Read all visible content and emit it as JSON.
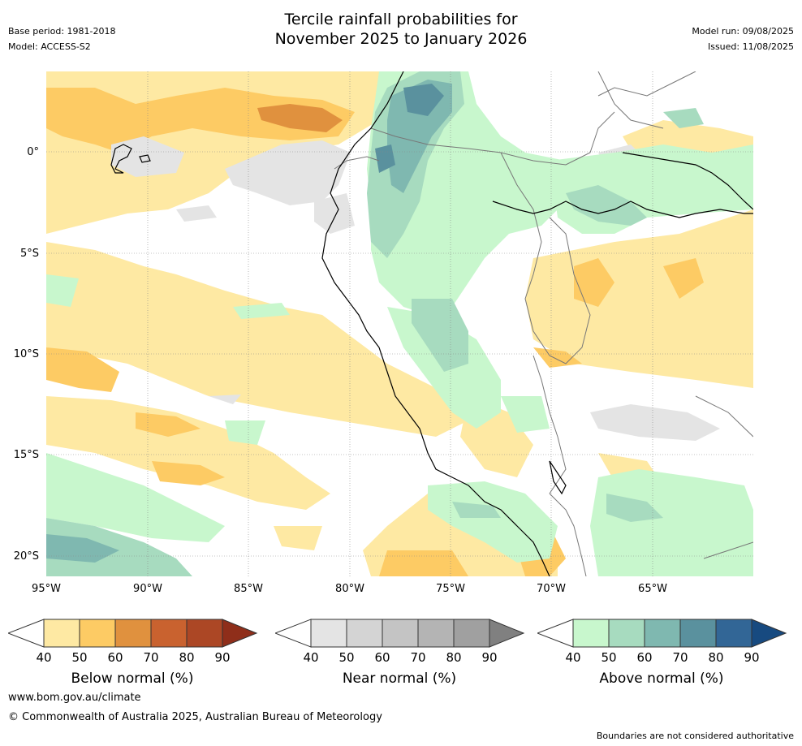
{
  "header": {
    "title_line1": "Tercile rainfall probabilities for",
    "title_line2": "November 2025 to January 2026",
    "base_period": "Base period: 1981-2018",
    "model": "Model: ACCESS-S2",
    "model_run": "Model run: 09/08/2025",
    "issued": "Issued: 11/08/2025"
  },
  "map": {
    "lat_labels": [
      "0°",
      "5°S",
      "10°S",
      "15°S",
      "20°S"
    ],
    "lon_labels": [
      "95°W",
      "90°W",
      "85°W",
      "80°W",
      "75°W",
      "70°W",
      "65°W"
    ],
    "colors": {
      "below": [
        "#fee9a3",
        "#fdcb64",
        "#e0913e",
        "#c9622f",
        "#ac4725",
        "#8f2e1a"
      ],
      "near": [
        "#e4e4e4",
        "#d4d4d4",
        "#c4c4c4",
        "#b4b4b4",
        "#a0a0a0",
        "#808080"
      ],
      "above": [
        "#c8f7cd",
        "#a7dbbf",
        "#7fb8b0",
        "#5a919e",
        "#326696",
        "#174a80"
      ]
    }
  },
  "colorbars": {
    "below": {
      "title": "Below normal (%)",
      "ticks": [
        "40",
        "50",
        "60",
        "70",
        "80",
        "90"
      ]
    },
    "near": {
      "title": "Near normal (%)",
      "ticks": [
        "40",
        "50",
        "60",
        "70",
        "80",
        "90"
      ]
    },
    "above": {
      "title": "Above normal (%)",
      "ticks": [
        "40",
        "50",
        "60",
        "70",
        "80",
        "90"
      ]
    }
  },
  "footer": {
    "url": "www.bom.gov.au/climate",
    "copyright": "© Commonwealth of Australia 2025, Australian Bureau of Meteorology",
    "disclaimer": "Boundaries are not considered authoritative"
  }
}
